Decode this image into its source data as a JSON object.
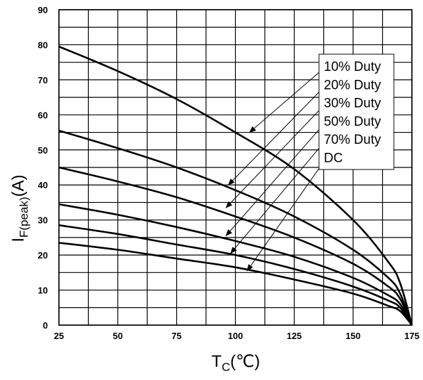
{
  "chart_data": {
    "type": "line",
    "title": "",
    "xlabel": {
      "main": "T",
      "sub": "C",
      "unit": "(℃)"
    },
    "ylabel": {
      "main": "I",
      "sub": "F(peak)",
      "unit": "(A)"
    },
    "xlim": [
      25,
      175
    ],
    "ylim": [
      0,
      90
    ],
    "x_ticks": [
      25,
      50,
      75,
      100,
      125,
      150,
      175
    ],
    "y_ticks": [
      0,
      10,
      20,
      30,
      40,
      50,
      60,
      70,
      80,
      90
    ],
    "grid": true,
    "legend_position": "top-right",
    "series": [
      {
        "name": "10% Duty",
        "x": [
          25,
          50,
          75,
          100,
          125,
          150,
          165,
          170,
          175
        ],
        "y": [
          79.5,
          72.5,
          64.5,
          55,
          44.5,
          30,
          18,
          12,
          0
        ]
      },
      {
        "name": "20% Duty",
        "x": [
          25,
          50,
          75,
          100,
          125,
          150,
          165,
          170,
          175
        ],
        "y": [
          55.5,
          50.5,
          45,
          38.5,
          31,
          21.5,
          13.5,
          9,
          0
        ]
      },
      {
        "name": "30% Duty",
        "x": [
          25,
          50,
          75,
          100,
          125,
          150,
          165,
          170,
          175
        ],
        "y": [
          45,
          41,
          36.5,
          31,
          25,
          17.5,
          11,
          7.5,
          0
        ]
      },
      {
        "name": "50% Duty",
        "x": [
          25,
          50,
          75,
          100,
          125,
          150,
          165,
          170,
          175
        ],
        "y": [
          34.5,
          31.5,
          28,
          24,
          19.5,
          13.5,
          8.5,
          6,
          0
        ]
      },
      {
        "name": "70% Duty",
        "x": [
          25,
          50,
          75,
          100,
          125,
          150,
          165,
          170,
          175
        ],
        "y": [
          28.5,
          26,
          23,
          20,
          16,
          11,
          7,
          5,
          0
        ]
      },
      {
        "name": "DC",
        "x": [
          25,
          50,
          75,
          100,
          125,
          150,
          165,
          170,
          175
        ],
        "y": [
          23.5,
          21.5,
          19,
          16.5,
          13,
          9,
          5.5,
          4,
          0
        ]
      }
    ],
    "legend_pointers": [
      {
        "series": "10% Duty",
        "x": 106,
        "y": 55
      },
      {
        "series": "20% Duty",
        "x": 97,
        "y": 40
      },
      {
        "series": "30% Duty",
        "x": 96,
        "y": 33.5
      },
      {
        "series": "50% Duty",
        "x": 96,
        "y": 25.5
      },
      {
        "series": "70% Duty",
        "x": 98,
        "y": 20.5
      },
      {
        "series": "DC",
        "x": 105,
        "y": 15.5
      }
    ],
    "colors": {
      "line": "#000000",
      "grid": "#000000",
      "background": "#ffffff"
    }
  }
}
